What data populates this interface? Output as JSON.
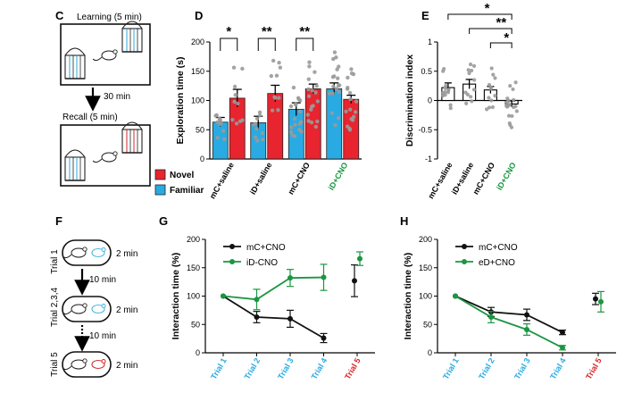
{
  "panel_labels": {
    "c": "C",
    "d": "D",
    "e": "E",
    "f": "F",
    "g": "G",
    "h": "H"
  },
  "panel_c": {
    "learning": "Learning (5 min)",
    "delay": "30 min",
    "recall": "Recall (5 min)"
  },
  "panel_f": {
    "trials": [
      {
        "label": "Trial 1",
        "duration": "2 min",
        "mouse_color": "#45b5e0"
      },
      {
        "label": "Trial 2,3,4",
        "duration": "2 min",
        "mouse_color": "#45b5e0"
      },
      {
        "label": "Trial 5",
        "duration": "2 min",
        "mouse_color": "#d62728"
      }
    ],
    "delay1": "10 min",
    "delay2": "10 min"
  },
  "legend_de": {
    "novel": "Novel",
    "familiar": "Familiar",
    "novel_color": "#e8242e",
    "familiar_color": "#29aae2"
  },
  "chart_data": [
    {
      "type": "bar",
      "title": "",
      "ylabel": "Exploration time (s)",
      "ylim": [
        0,
        200
      ],
      "yticks": [
        0,
        50,
        100,
        150,
        200
      ],
      "groups": [
        {
          "label": "mC+saline",
          "label_color": "#000000",
          "familiar": 63,
          "novel": 104,
          "familiar_err": 8,
          "novel_err": 15
        },
        {
          "label": "iD+saline",
          "label_color": "#000000",
          "familiar": 62,
          "novel": 112,
          "familiar_err": 11,
          "novel_err": 14
        },
        {
          "label": "mC+CNO",
          "label_color": "#000000",
          "familiar": 85,
          "novel": 120,
          "familiar_err": 11,
          "novel_err": 8
        },
        {
          "label": "iD+CNO",
          "label_color": "#1a9641",
          "familiar": 120,
          "novel": 102,
          "familiar_err": 10,
          "novel_err": 7
        }
      ],
      "significance": [
        "*",
        "**",
        "**"
      ]
    },
    {
      "type": "bar",
      "title": "",
      "ylabel": "Discrimination index",
      "ylim": [
        -1,
        1
      ],
      "yticks": [
        -1,
        -0.5,
        0,
        0.5,
        1
      ],
      "groups": [
        {
          "label": "mC+saline",
          "label_color": "#000000",
          "value": 0.22,
          "err": 0.08
        },
        {
          "label": "iD+saline",
          "label_color": "#000000",
          "value": 0.28,
          "err": 0.08
        },
        {
          "label": "mC+CNO",
          "label_color": "#000000",
          "value": 0.18,
          "err": 0.06
        },
        {
          "label": "iD+CNO",
          "label_color": "#1a9641",
          "value": -0.06,
          "err": 0.05
        }
      ],
      "significance": [
        "*",
        "**",
        "*"
      ]
    },
    {
      "type": "line",
      "ylabel": "Interaction time (%)",
      "ylim": [
        0,
        200
      ],
      "yticks": [
        0,
        50,
        100,
        150,
        200
      ],
      "categories": [
        "Trial 1",
        "Trial 2",
        "Trial 3",
        "Trial 4",
        "Trial 5"
      ],
      "category_colors": [
        "#29aae2",
        "#29aae2",
        "#29aae2",
        "#29aae2",
        "#d62728"
      ],
      "series": [
        {
          "name": "mC+CNO",
          "color": "#111111",
          "values": [
            100,
            63,
            60,
            26,
            127
          ],
          "errors": [
            0,
            10,
            15,
            8,
            28
          ]
        },
        {
          "name": "iD-CNO",
          "color": "#1a9641",
          "values": [
            100,
            94,
            132,
            133,
            166
          ],
          "errors": [
            0,
            18,
            15,
            23,
            12
          ]
        }
      ]
    },
    {
      "type": "line",
      "ylabel": "Interaction time (%)",
      "ylim": [
        0,
        200
      ],
      "yticks": [
        0,
        50,
        100,
        150,
        200
      ],
      "categories": [
        "Trial 1",
        "Trial 2",
        "Trial 3",
        "Trial 4",
        "Trial 5"
      ],
      "category_colors": [
        "#29aae2",
        "#29aae2",
        "#29aae2",
        "#29aae2",
        "#d62728"
      ],
      "series": [
        {
          "name": "mC+CNO",
          "color": "#111111",
          "values": [
            100,
            72,
            67,
            36,
            95
          ],
          "errors": [
            0,
            8,
            10,
            4,
            10
          ]
        },
        {
          "name": "eD+CNO",
          "color": "#1a9641",
          "values": [
            100,
            63,
            41,
            9,
            90
          ],
          "errors": [
            0,
            10,
            10,
            4,
            18
          ]
        }
      ]
    }
  ]
}
